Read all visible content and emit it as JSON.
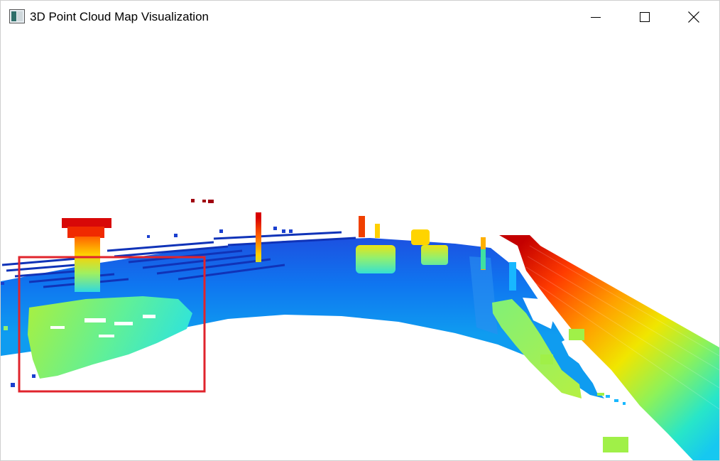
{
  "window": {
    "title": "3D Point Cloud Map Visualization",
    "controls": [
      "minimize",
      "maximize",
      "close"
    ]
  },
  "viewport": {
    "background": "#ffffff",
    "colormap": "jet",
    "selection_box_color": "#e0242c",
    "icons": [
      "app-icon",
      "minimize-icon",
      "maximize-icon",
      "close-icon"
    ]
  }
}
